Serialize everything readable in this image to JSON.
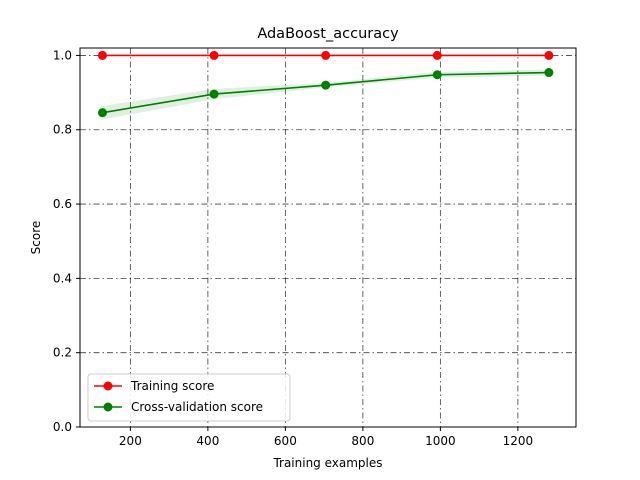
{
  "chart_data": {
    "type": "line",
    "title": "AdaBoost_accuracy",
    "xlabel": "Training examples",
    "ylabel": "Score",
    "xlim": [
      70,
      1350
    ],
    "ylim": [
      0.0,
      1.0
    ],
    "x_ticks": [
      200,
      400,
      600,
      800,
      1000,
      1200
    ],
    "y_ticks": [
      0.0,
      0.2,
      0.4,
      0.6,
      0.8,
      1.0
    ],
    "x_tick_labels": [
      "200",
      "400",
      "600",
      "800",
      "1000",
      "1200"
    ],
    "y_tick_labels": [
      "0.0",
      "0.2",
      "0.4",
      "0.6",
      "0.8",
      "1.0"
    ],
    "grid": true,
    "grid_style": "dash-dot",
    "legend_position": "lower-left",
    "x": [
      128,
      416,
      704,
      992,
      1280
    ],
    "series": [
      {
        "name": "Training score",
        "color": "#ff0000",
        "marker": "circle",
        "values": [
          1.0,
          1.0,
          1.0,
          1.0,
          1.0
        ],
        "band_lower": [
          1.0,
          1.0,
          1.0,
          1.0,
          1.0
        ],
        "band_upper": [
          1.0,
          1.0,
          1.0,
          1.0,
          1.0
        ]
      },
      {
        "name": "Cross-validation score",
        "color": "#008000",
        "marker": "circle",
        "values": [
          0.846,
          0.896,
          0.92,
          0.948,
          0.954
        ],
        "band_lower": [
          0.828,
          0.882,
          0.914,
          0.94,
          0.946
        ],
        "band_upper": [
          0.864,
          0.91,
          0.926,
          0.956,
          0.962
        ]
      }
    ]
  }
}
